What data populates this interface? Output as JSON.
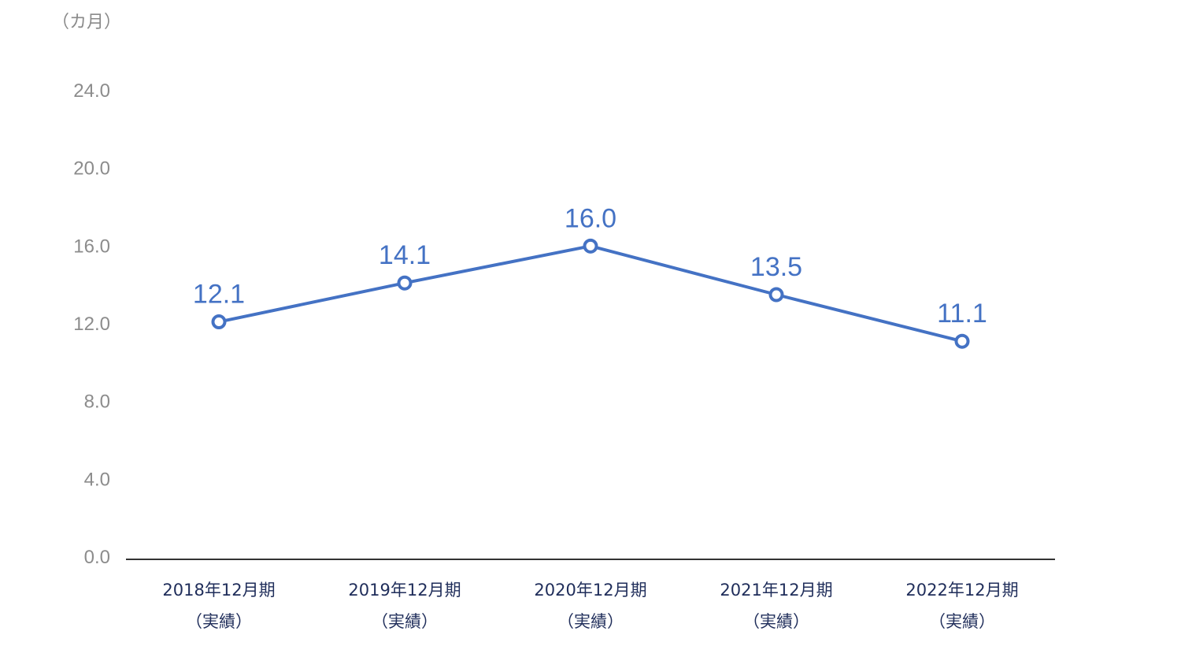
{
  "chart_data": {
    "type": "line",
    "unit_label": "（カ月）",
    "categories": [
      [
        "2018年12月期",
        "（実績）"
      ],
      [
        "2019年12月期",
        "（実績）"
      ],
      [
        "2020年12月期",
        "（実績）"
      ],
      [
        "2021年12月期",
        "（実績）"
      ],
      [
        "2022年12月期",
        "（実績）"
      ]
    ],
    "series": [
      {
        "values": [
          12.1,
          14.1,
          16.0,
          13.5,
          11.1
        ],
        "labels": [
          "12.1",
          "14.1",
          "16.0",
          "13.5",
          "11.1"
        ]
      }
    ],
    "yticks": [
      "0.0",
      "4.0",
      "8.0",
      "12.0",
      "16.0",
      "20.0",
      "24.0"
    ],
    "ylim": [
      0,
      24
    ],
    "grid": false,
    "colors": {
      "line": "#4472c4",
      "axis": "#333333"
    }
  }
}
